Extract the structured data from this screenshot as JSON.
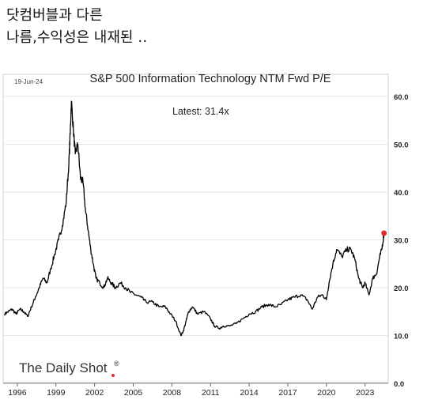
{
  "post": {
    "caption_line1": "닷컴버블과 다른",
    "caption_line2": "나름,수익성은 내재된 ‥"
  },
  "chart_data": {
    "type": "line",
    "title": "S&P 500 Information Technology NTM Fwd P/E",
    "date_label": "19-Jun-24",
    "annotation": "Latest:  31.4x",
    "source": "The Daily Shot",
    "xlim": [
      1994.9,
      2024.8
    ],
    "ylim": [
      0,
      60
    ],
    "grid": true,
    "y_axis_side": "right",
    "x_tick_labels": [
      "1996",
      "1999",
      "2002",
      "2005",
      "2008",
      "2011",
      "2014",
      "2017",
      "2020",
      "2023"
    ],
    "y_tick_labels": [
      "0.0",
      "10.0",
      "20.0",
      "30.0",
      "40.0",
      "50.0",
      "60.0"
    ],
    "line_color": "#000000",
    "latest_marker_color": "#e03030",
    "latest": {
      "x": 2024.47,
      "y": 31.4
    },
    "series": [
      {
        "x": [
          1995.0,
          1995.3,
          1995.6,
          1995.9,
          1996.2,
          1996.5,
          1996.8,
          1997.1,
          1997.4,
          1997.7,
          1998.0,
          1998.3,
          1998.6,
          1998.9,
          1999.2,
          1999.5,
          1999.8,
          2000.0,
          2000.1,
          2000.2,
          2000.35,
          2000.5,
          2000.7,
          2000.9,
          2001.1,
          2001.3,
          2001.5,
          2001.7,
          2001.9,
          2002.1,
          2002.4,
          2002.7,
          2003.0,
          2003.3,
          2003.6,
          2004.0,
          2004.4,
          2004.8,
          2005.2,
          2005.6,
          2006.0,
          2006.5,
          2007.0,
          2007.5,
          2007.9,
          2008.3,
          2008.7,
          2008.9,
          2009.1,
          2009.3,
          2009.6,
          2010.0,
          2010.5,
          2011.0,
          2011.3,
          2011.7,
          2012.0,
          2012.5,
          2013.0,
          2013.5,
          2014.0,
          2014.5,
          2015.0,
          2015.5,
          2016.0,
          2016.5,
          2017.0,
          2017.5,
          2018.0,
          2018.5,
          2018.9,
          2019.3,
          2019.7,
          2020.0,
          2020.2,
          2020.5,
          2020.8,
          2021.2,
          2021.6,
          2021.9,
          2022.2,
          2022.5,
          2022.8,
          2023.0,
          2023.3,
          2023.6,
          2023.9,
          2024.1,
          2024.3,
          2024.47
        ],
        "y": [
          14.5,
          15,
          15.5,
          14.5,
          15.5,
          15,
          14,
          16,
          18,
          20,
          22,
          21,
          24,
          27,
          30,
          33,
          38,
          46,
          52,
          59,
          53,
          48,
          50,
          43,
          42,
          36,
          32,
          28,
          25,
          22,
          21,
          20,
          22,
          21,
          20,
          21,
          20,
          19,
          18.5,
          18,
          17,
          17,
          16,
          16,
          14.5,
          13,
          10,
          11,
          13,
          15,
          16,
          14.5,
          15,
          13.5,
          12,
          11.5,
          12,
          12,
          12.5,
          13.5,
          14.5,
          15,
          16,
          16.5,
          16,
          16.5,
          17.5,
          18,
          18.5,
          17.5,
          15.5,
          18,
          18.5,
          17.5,
          21,
          25,
          28,
          26.5,
          28,
          28,
          26,
          22,
          20,
          21,
          18.5,
          22,
          23,
          26,
          28,
          31.4
        ]
      }
    ]
  }
}
